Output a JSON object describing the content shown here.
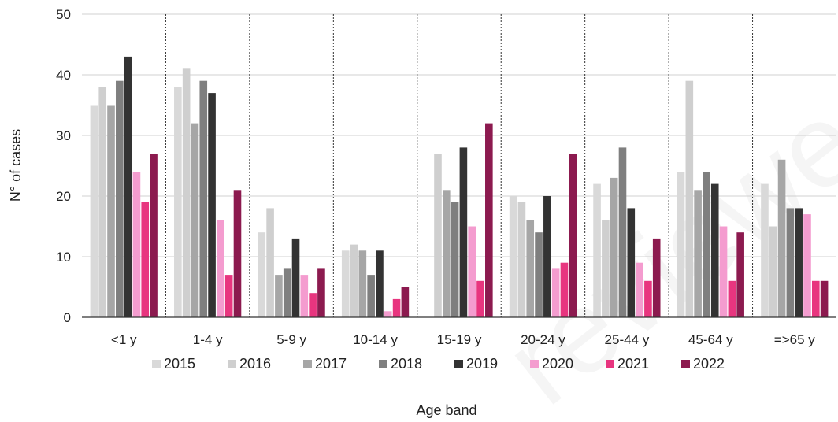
{
  "watermark": "reviewe",
  "chart_data": {
    "type": "bar",
    "xlabel": "Age band",
    "ylabel": "N° of cases",
    "ylim": [
      0,
      50
    ],
    "yticks": [
      0,
      10,
      20,
      30,
      40,
      50
    ],
    "grid": true,
    "legend_position": "bottom",
    "categories": [
      "<1 y",
      "1-4 y",
      "5-9 y",
      "10-14 y",
      "15-19 y",
      "20-24 y",
      "25-44 y",
      "45-64 y",
      "=>65 y"
    ],
    "series": [
      {
        "name": "2015",
        "color": "#d9d9d9",
        "values": [
          35,
          38,
          14,
          11,
          0,
          20,
          22,
          24,
          22
        ]
      },
      {
        "name": "2016",
        "color": "#cfcfcf",
        "values": [
          38,
          41,
          18,
          12,
          27,
          19,
          16,
          39,
          15
        ]
      },
      {
        "name": "2017",
        "color": "#a6a6a6",
        "values": [
          35,
          32,
          7,
          11,
          21,
          16,
          23,
          21,
          26
        ]
      },
      {
        "name": "2018",
        "color": "#7f7f7f",
        "values": [
          39,
          39,
          8,
          7,
          19,
          14,
          28,
          24,
          18
        ]
      },
      {
        "name": "2019",
        "color": "#333333",
        "values": [
          43,
          37,
          13,
          11,
          28,
          20,
          18,
          22,
          18
        ]
      },
      {
        "name": "2020",
        "color": "#f49ccf",
        "values": [
          24,
          16,
          7,
          1,
          15,
          8,
          9,
          15,
          17
        ]
      },
      {
        "name": "2021",
        "color": "#e8357f",
        "values": [
          19,
          7,
          4,
          3,
          6,
          9,
          6,
          6,
          6
        ]
      },
      {
        "name": "2022",
        "color": "#8c1a4f",
        "values": [
          27,
          21,
          8,
          5,
          32,
          27,
          13,
          14,
          6
        ]
      }
    ]
  }
}
